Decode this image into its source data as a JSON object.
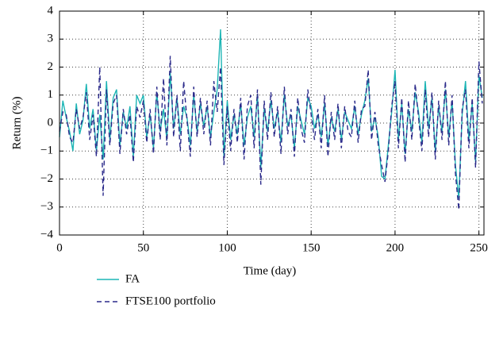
{
  "chart_data": {
    "type": "line",
    "xlabel": "Time (day)",
    "ylabel": "Return (%)",
    "xlim": [
      0,
      253
    ],
    "ylim": [
      -4,
      4
    ],
    "xticks": [
      0,
      50,
      100,
      150,
      200,
      250
    ],
    "yticks": [
      {
        "value": -4,
        "label": "−4"
      },
      {
        "value": -3,
        "label": "−3"
      },
      {
        "value": -2,
        "label": "−2"
      },
      {
        "value": -1,
        "label": "−1"
      },
      0,
      1,
      2,
      3,
      4
    ],
    "grid": true,
    "legend": "below",
    "x": [
      0,
      2,
      4,
      6,
      8,
      10,
      12,
      14,
      16,
      18,
      20,
      22,
      24,
      26,
      28,
      30,
      32,
      34,
      36,
      38,
      40,
      42,
      44,
      46,
      48,
      50,
      52,
      54,
      56,
      58,
      60,
      62,
      64,
      66,
      68,
      70,
      72,
      74,
      76,
      78,
      80,
      82,
      84,
      86,
      88,
      90,
      92,
      94,
      96,
      98,
      100,
      102,
      104,
      106,
      108,
      110,
      112,
      114,
      116,
      118,
      120,
      122,
      124,
      126,
      128,
      130,
      132,
      134,
      136,
      138,
      140,
      142,
      144,
      146,
      148,
      150,
      152,
      154,
      156,
      158,
      160,
      162,
      164,
      166,
      168,
      170,
      172,
      174,
      176,
      178,
      180,
      182,
      184,
      186,
      188,
      190,
      192,
      194,
      196,
      198,
      200,
      202,
      204,
      206,
      208,
      210,
      212,
      214,
      216,
      218,
      220,
      222,
      224,
      226,
      228,
      230,
      232,
      234,
      236,
      238,
      240,
      242,
      244,
      246,
      248,
      250,
      252
    ],
    "series": [
      {
        "name": "FA",
        "color": "#1db5b5",
        "dash": "solid",
        "values": [
          -0.5,
          0.8,
          0.2,
          -0.3,
          -1.0,
          0.7,
          -0.4,
          0.1,
          1.4,
          -0.2,
          0.5,
          -1.0,
          0.3,
          -1.3,
          1.5,
          -0.6,
          0.9,
          1.2,
          -0.8,
          0.4,
          -0.2,
          0.6,
          -1.2,
          1.0,
          0.7,
          1.0,
          -0.5,
          0.3,
          -0.9,
          1.1,
          -0.3,
          0.5,
          -0.6,
          1.8,
          -0.2,
          0.9,
          -0.4,
          0.6,
          0.2,
          -0.8,
          1.0,
          -0.3,
          0.7,
          -0.1,
          0.6,
          -0.5,
          0.4,
          1.2,
          3.35,
          -1.2,
          0.8,
          -0.6,
          0.3,
          -0.4,
          0.7,
          -0.8,
          0.2,
          0.6,
          -0.5,
          1.0,
          -1.6,
          0.5,
          -0.3,
          0.8,
          -0.2,
          0.4,
          -0.7,
          1.0,
          -0.1,
          0.3,
          -0.9,
          0.6,
          0.1,
          -0.4,
          0.9,
          0.6,
          -0.2,
          0.3,
          -0.5,
          0.7,
          -0.8,
          0.2,
          -0.3,
          0.5,
          -0.6,
          0.4,
          0.1,
          -0.2,
          0.6,
          -0.4,
          0.3,
          0.8,
          1.6,
          -0.3,
          0.2,
          -0.5,
          -1.9,
          -2.0,
          -0.8,
          0.4,
          1.9,
          -0.6,
          0.7,
          -1.1,
          0.5,
          -0.3,
          1.1,
          0.4,
          -0.7,
          1.5,
          -0.2,
          0.9,
          -1.0,
          0.6,
          -0.3,
          1.2,
          -0.5,
          0.8,
          -1.5,
          -2.7,
          0.3,
          1.5,
          -0.6,
          0.7,
          -1.4,
          1.7,
          0.9
        ]
      },
      {
        "name": "FTSE100 portfolio",
        "color": "#2b2a8a",
        "dash": "dashed",
        "values": [
          -0.3,
          0.4,
          0.3,
          -0.5,
          -0.7,
          0.5,
          -0.2,
          0.2,
          1.1,
          -0.6,
          0.3,
          -1.2,
          2.0,
          -2.6,
          1.2,
          -0.8,
          0.7,
          1.0,
          -1.1,
          0.5,
          -0.4,
          0.3,
          -1.4,
          0.6,
          0.2,
          0.8,
          -0.7,
          0.5,
          -1.1,
          1.3,
          -0.6,
          1.6,
          -0.8,
          2.4,
          -0.5,
          1.0,
          -1.0,
          1.5,
          0.1,
          -1.2,
          1.3,
          -0.5,
          0.9,
          -0.4,
          0.8,
          -0.8,
          1.5,
          0.4,
          2.0,
          -1.5,
          0.6,
          -1.0,
          0.5,
          -0.7,
          0.9,
          -1.3,
          0.6,
          1.0,
          -0.9,
          1.2,
          -2.2,
          0.8,
          -0.6,
          1.1,
          -0.5,
          0.6,
          -1.1,
          1.3,
          -0.4,
          0.5,
          -1.2,
          0.9,
          -0.2,
          -0.7,
          1.2,
          0.3,
          -0.6,
          0.5,
          -0.9,
          1.0,
          -1.2,
          0.4,
          -0.6,
          0.7,
          -0.9,
          0.6,
          -0.3,
          -0.5,
          0.8,
          -0.7,
          0.5,
          0.6,
          1.9,
          -0.6,
          0.4,
          -0.8,
          -1.5,
          -2.1,
          -1.0,
          0.6,
          1.5,
          -0.9,
          0.9,
          -1.4,
          0.8,
          -0.6,
          1.4,
          0.2,
          -1.0,
          1.2,
          -0.5,
          1.1,
          -1.3,
          0.8,
          -0.6,
          1.5,
          -0.8,
          1.0,
          -1.8,
          -3.1,
          0.5,
          1.2,
          -0.9,
          0.9,
          -1.6,
          2.2,
          0.7
        ]
      }
    ]
  }
}
